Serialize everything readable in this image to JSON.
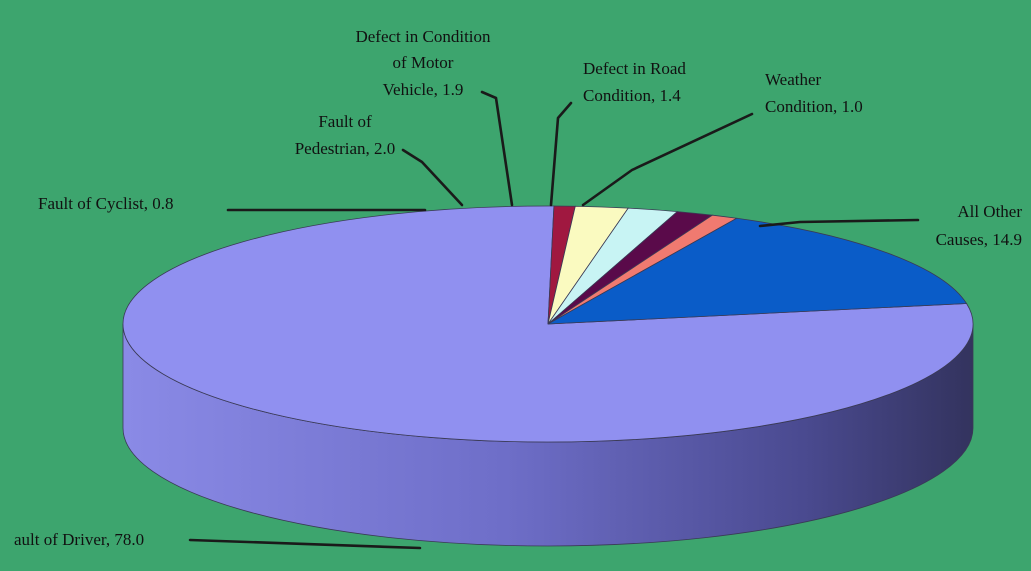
{
  "chart_data": {
    "type": "pie",
    "three_d": true,
    "title": "",
    "slices": [
      {
        "label": "Fault of Driver",
        "value": 78.0,
        "color": "#9090f0",
        "display": "ault of Driver, 78.0"
      },
      {
        "label": "All Other Causes",
        "value": 14.9,
        "color": "#0a5cc8",
        "display_lines": [
          "All Other",
          "Causes, 14.9"
        ]
      },
      {
        "label": "Weather Condition",
        "value": 1.0,
        "color": "#f07a70",
        "display_lines": [
          "Weather",
          "Condition, 1.0"
        ]
      },
      {
        "label": "Defect in Road Condition",
        "value": 1.4,
        "color": "#5a0a4a",
        "display_lines": [
          "Defect in Road",
          "Condition, 1.4"
        ]
      },
      {
        "label": "Defect in Condition of Motor Vehicle",
        "value": 1.9,
        "color": "#c8f4f4",
        "display_lines": [
          "Defect in Condition",
          "of Motor",
          "Vehicle, 1.9"
        ]
      },
      {
        "label": "Fault of Pedestrian",
        "value": 2.0,
        "color": "#fafac0",
        "display_lines": [
          "Fault of",
          "Pedestrian, 2.0"
        ]
      },
      {
        "label": "Fault of Cyclist",
        "value": 0.8,
        "color": "#a01840",
        "display": "Fault of Cyclist, 0.8"
      }
    ],
    "legend": "none",
    "background_color": "#3da56e"
  }
}
